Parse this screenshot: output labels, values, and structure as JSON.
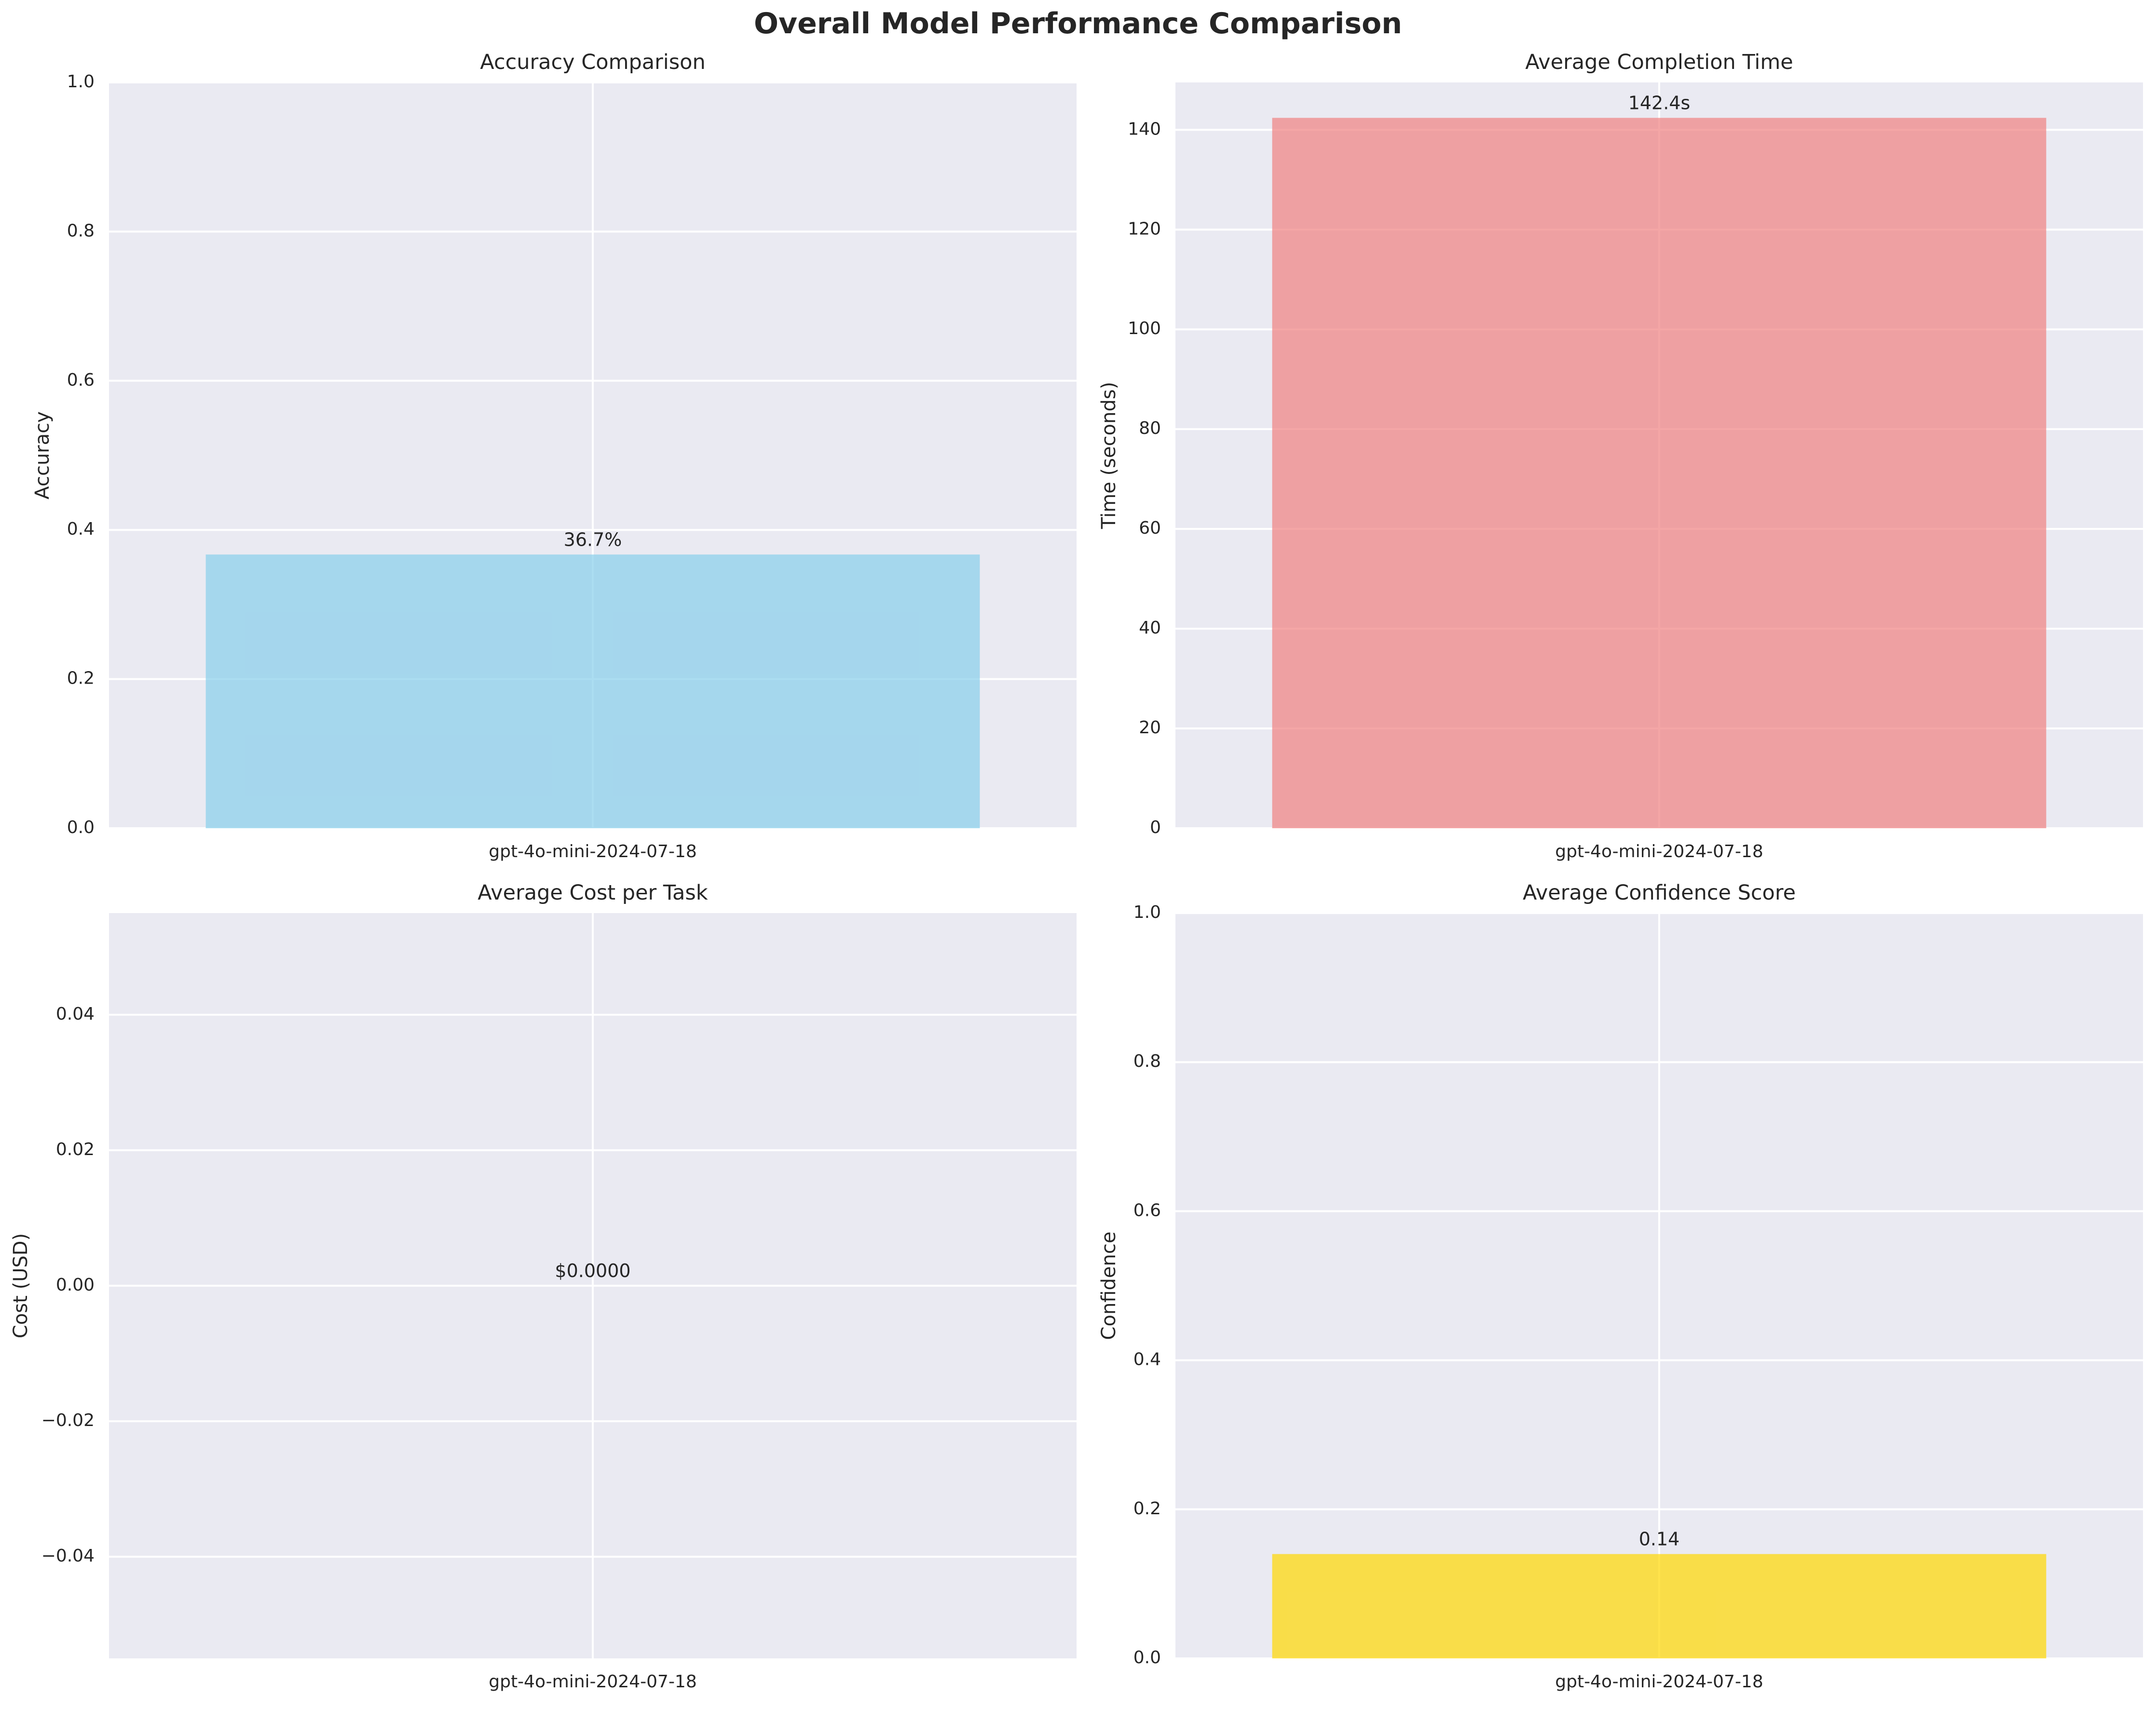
{
  "figure": {
    "title": "Overall Model Performance Comparison"
  },
  "chart_data": [
    {
      "type": "bar",
      "title": "Accuracy Comparison",
      "xlabel": "",
      "ylabel": "Accuracy",
      "categories": [
        "gpt-4o-mini-2024-07-18"
      ],
      "values": [
        0.367
      ],
      "value_labels": [
        "36.7%"
      ],
      "ylim": [
        0,
        1.0
      ],
      "yticks": [
        0.0,
        0.2,
        0.4,
        0.6,
        0.8,
        1.0
      ],
      "ytick_labels": [
        "0.0",
        "0.2",
        "0.4",
        "0.6",
        "0.8",
        "1.0"
      ],
      "color": "#87ceeb",
      "grid": true,
      "legend": "none"
    },
    {
      "type": "bar",
      "title": "Average Completion Time",
      "xlabel": "",
      "ylabel": "Time (seconds)",
      "categories": [
        "gpt-4o-mini-2024-07-18"
      ],
      "values": [
        142.4
      ],
      "value_labels": [
        "142.4s"
      ],
      "ylim": [
        0,
        149.5
      ],
      "yticks": [
        0,
        20,
        40,
        60,
        80,
        100,
        120,
        140
      ],
      "ytick_labels": [
        "0",
        "20",
        "40",
        "60",
        "80",
        "100",
        "120",
        "140"
      ],
      "color": "#f08080",
      "grid": true,
      "legend": "none"
    },
    {
      "type": "bar",
      "title": "Average Cost per Task",
      "xlabel": "",
      "ylabel": "Cost (USD)",
      "categories": [
        "gpt-4o-mini-2024-07-18"
      ],
      "values": [
        0.0
      ],
      "value_labels": [
        "$0.0000"
      ],
      "ylim": [
        -0.055,
        0.055
      ],
      "yticks": [
        -0.04,
        -0.02,
        0.0,
        0.02,
        0.04
      ],
      "ytick_labels": [
        "−0.04",
        "−0.02",
        "0.00",
        "0.02",
        "0.04"
      ],
      "color": "#90ee90",
      "grid": true,
      "legend": "none"
    },
    {
      "type": "bar",
      "title": "Average Confidence Score",
      "xlabel": "",
      "ylabel": "Confidence",
      "categories": [
        "gpt-4o-mini-2024-07-18"
      ],
      "values": [
        0.14
      ],
      "value_labels": [
        "0.14"
      ],
      "ylim": [
        0,
        1.0
      ],
      "yticks": [
        0.0,
        0.2,
        0.4,
        0.6,
        0.8,
        1.0
      ],
      "ytick_labels": [
        "0.0",
        "0.2",
        "0.4",
        "0.6",
        "0.8",
        "1.0"
      ],
      "color": "#ffd700",
      "grid": true,
      "legend": "none"
    }
  ],
  "style": {
    "plot_background": "#eaeaf2",
    "grid_color": "#ffffff",
    "bar_opacity": 0.7
  }
}
